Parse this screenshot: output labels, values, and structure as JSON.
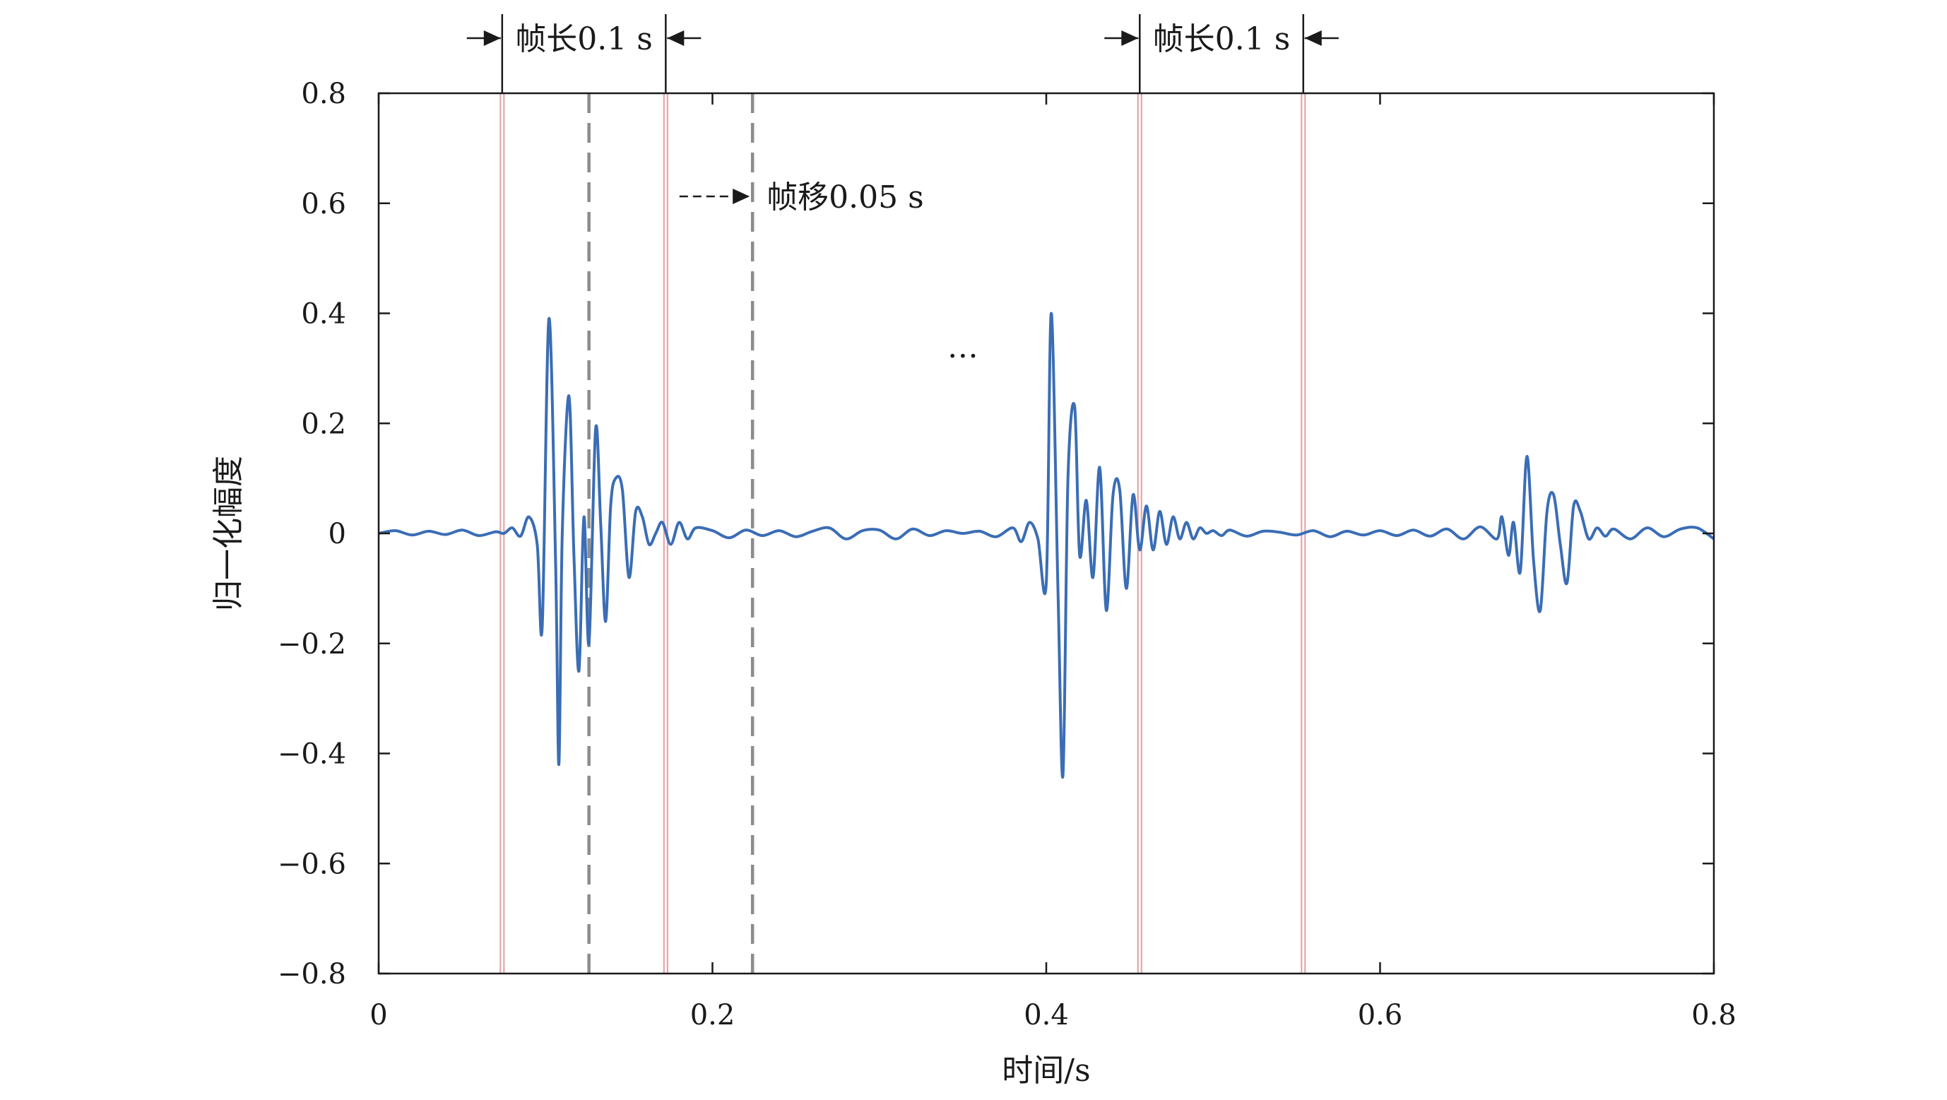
{
  "chart_data": {
    "type": "line",
    "xlabel": "时间/s",
    "ylabel": "归一化幅度",
    "xlim": [
      0,
      0.8
    ],
    "ylim": [
      -0.8,
      0.8
    ],
    "xticks": [
      0,
      0.2,
      0.4,
      0.6,
      0.8
    ],
    "xtick_labels": [
      "0",
      "0.2",
      "0.4",
      "0.6",
      "0.8"
    ],
    "yticks": [
      0.8,
      0.6,
      0.4,
      0.2,
      0,
      -0.2,
      -0.4,
      -0.6,
      -0.8
    ],
    "ytick_labels": [
      "0.8",
      "0.6",
      "0.4",
      "0.2",
      "0",
      "−0.2",
      "−0.4",
      "−0.6",
      "−0.8"
    ],
    "grid": false,
    "colors": {
      "signal": "#3a6db5",
      "frame_line": "#e3a6aa",
      "shift_line": "#8c8c8c",
      "axis": "#1a1a1a"
    },
    "series": [
      {
        "x": [
          0,
          0.01,
          0.02,
          0.03,
          0.04,
          0.05,
          0.06,
          0.07,
          0.075,
          0.08,
          0.085,
          0.09,
          0.095,
          0.098,
          0.102,
          0.106,
          0.108,
          0.11,
          0.114,
          0.117,
          0.12,
          0.123,
          0.126,
          0.13,
          0.133,
          0.136,
          0.139,
          0.142,
          0.146,
          0.15,
          0.154,
          0.158,
          0.162,
          0.166,
          0.17,
          0.175,
          0.18,
          0.185,
          0.19,
          0.2,
          0.21,
          0.22,
          0.23,
          0.24,
          0.25,
          0.26,
          0.27,
          0.28,
          0.29,
          0.3,
          0.31,
          0.32,
          0.33,
          0.34,
          0.35,
          0.36,
          0.37,
          0.38,
          0.385,
          0.39,
          0.395,
          0.4,
          0.403,
          0.407,
          0.41,
          0.413,
          0.417,
          0.42,
          0.424,
          0.428,
          0.432,
          0.436,
          0.44,
          0.444,
          0.448,
          0.452,
          0.456,
          0.46,
          0.464,
          0.468,
          0.472,
          0.476,
          0.48,
          0.484,
          0.488,
          0.492,
          0.496,
          0.5,
          0.505,
          0.51,
          0.52,
          0.53,
          0.54,
          0.55,
          0.56,
          0.57,
          0.58,
          0.59,
          0.6,
          0.61,
          0.62,
          0.63,
          0.64,
          0.65,
          0.66,
          0.67,
          0.673,
          0.677,
          0.68,
          0.684,
          0.688,
          0.692,
          0.696,
          0.7,
          0.704,
          0.708,
          0.712,
          0.716,
          0.72,
          0.725,
          0.73,
          0.735,
          0.74,
          0.75,
          0.76,
          0.77,
          0.78,
          0.79,
          0.8
        ],
        "values": [
          0,
          0.005,
          -0.003,
          0.004,
          -0.002,
          0.006,
          -0.004,
          0.003,
          0.0,
          0.01,
          -0.005,
          0.03,
          -0.02,
          -0.17,
          0.39,
          -0.05,
          -0.42,
          0.0,
          0.25,
          -0.04,
          -0.25,
          0.03,
          -0.2,
          0.19,
          0.02,
          -0.16,
          0.05,
          0.1,
          0.08,
          -0.08,
          0.04,
          0.03,
          -0.02,
          0.0,
          0.02,
          -0.02,
          0.02,
          -0.01,
          0.01,
          0.005,
          -0.008,
          0.006,
          -0.004,
          0.005,
          -0.006,
          0.004,
          0.01,
          -0.01,
          0.005,
          0.006,
          -0.01,
          0.008,
          -0.004,
          0.005,
          0.0,
          0.004,
          -0.006,
          0.01,
          -0.015,
          0.02,
          -0.01,
          -0.09,
          0.4,
          -0.1,
          -0.44,
          0.1,
          0.23,
          -0.04,
          0.06,
          -0.08,
          0.12,
          -0.14,
          0.07,
          0.08,
          -0.1,
          0.07,
          -0.03,
          0.05,
          -0.03,
          0.04,
          -0.02,
          0.03,
          -0.01,
          0.02,
          -0.01,
          0.01,
          0.0,
          0.005,
          -0.004,
          0.006,
          -0.005,
          0.004,
          0.002,
          -0.003,
          0.005,
          -0.006,
          0.004,
          -0.003,
          0.005,
          -0.004,
          0.006,
          -0.005,
          0.008,
          -0.01,
          0.012,
          -0.01,
          0.03,
          -0.04,
          0.02,
          -0.07,
          0.14,
          -0.05,
          -0.14,
          0.04,
          0.07,
          -0.02,
          -0.09,
          0.05,
          0.04,
          -0.01,
          0.01,
          -0.005,
          0.008,
          -0.01,
          0.01,
          -0.006,
          0.008,
          0.01,
          -0.01
        ]
      }
    ],
    "annotations": {
      "frame_lines_x": [
        0.074,
        0.172,
        0.456,
        0.554
      ],
      "shift_lines_x": [
        0.126,
        0.224
      ],
      "frame_length_labels": [
        "帧长0.1 s",
        "帧长0.1 s"
      ],
      "frame_shift_label": "帧移0.05 s",
      "ellipsis": "…"
    }
  }
}
